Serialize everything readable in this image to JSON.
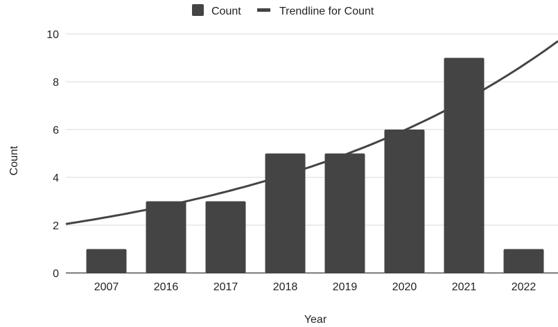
{
  "chart_data": {
    "type": "bar",
    "categories": [
      "2007",
      "2016",
      "2017",
      "2018",
      "2019",
      "2020",
      "2021",
      "2022"
    ],
    "series": [
      {
        "name": "Count",
        "values": [
          1,
          3,
          3,
          5,
          5,
          6,
          9,
          1
        ],
        "color": "#444444"
      }
    ],
    "trendline": {
      "name": "Trendline for Count",
      "kind": "exponential",
      "color": "#444444",
      "start_value": 2.05,
      "end_value": 9.7
    },
    "xlabel": "Year",
    "ylabel": "Count",
    "ylim": [
      0,
      10
    ],
    "yticks": [
      "0",
      "2",
      "4",
      "6",
      "8",
      "10"
    ],
    "grid": true,
    "legend_position": "top-center"
  }
}
